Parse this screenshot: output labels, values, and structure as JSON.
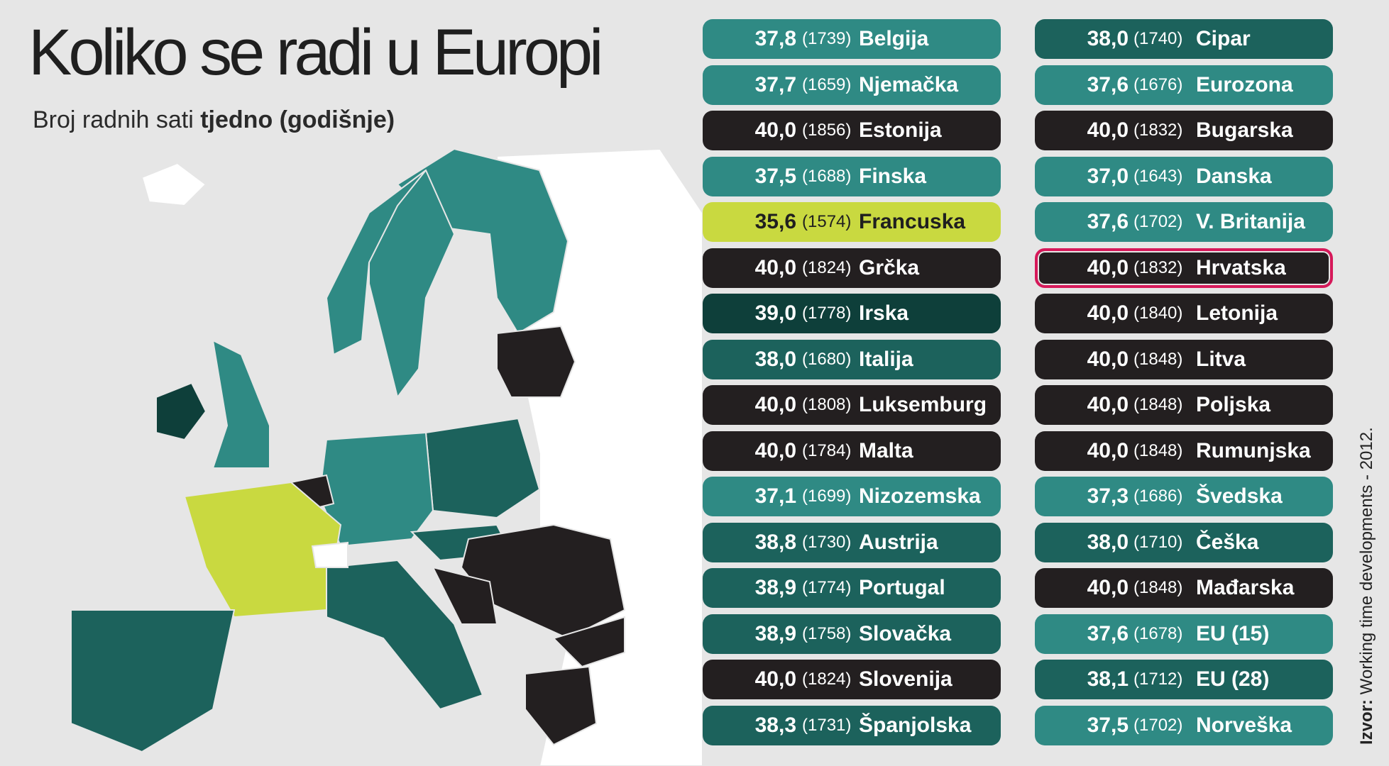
{
  "header": {
    "title": "Koliko se radi u Europi",
    "subtitle": "Broj radnih sati ",
    "subtitle_bold": "tjedno (godišnje)"
  },
  "source": {
    "label": "Izvor:",
    "text": "Working time developments - 2012."
  },
  "columns": [
    [
      {
        "weekly": "37,8",
        "annual": "(1739)",
        "country": "Belgija",
        "color": "#2f8a84"
      },
      {
        "weekly": "37,7",
        "annual": "(1659)",
        "country": "Njemačka",
        "color": "#2f8a84"
      },
      {
        "weekly": "40,0",
        "annual": "(1856)",
        "country": "Estonija",
        "color": "#231f20"
      },
      {
        "weekly": "37,5",
        "annual": "(1688)",
        "country": "Finska",
        "color": "#2f8a84"
      },
      {
        "weekly": "35,6",
        "annual": "(1574)",
        "country": "Francuska",
        "color": "#c9d940"
      },
      {
        "weekly": "40,0",
        "annual": "(1824)",
        "country": "Grčka",
        "color": "#231f20"
      },
      {
        "weekly": "39,0",
        "annual": "(1778)",
        "country": "Irska",
        "color": "#0e3f3a"
      },
      {
        "weekly": "38,0",
        "annual": "(1680)",
        "country": "Italija",
        "color": "#1c625c"
      },
      {
        "weekly": "40,0",
        "annual": "(1808)",
        "country": "Luksemburg",
        "color": "#231f20"
      },
      {
        "weekly": "40,0",
        "annual": "(1784)",
        "country": "Malta",
        "color": "#231f20"
      },
      {
        "weekly": "37,1",
        "annual": "(1699)",
        "country": "Nizozemska",
        "color": "#2f8a84"
      },
      {
        "weekly": "38,8",
        "annual": "(1730)",
        "country": "Austrija",
        "color": "#1c625c"
      },
      {
        "weekly": "38,9",
        "annual": "(1774)",
        "country": "Portugal",
        "color": "#1c625c"
      },
      {
        "weekly": "38,9",
        "annual": "(1758)",
        "country": "Slovačka",
        "color": "#1c625c"
      },
      {
        "weekly": "40,0",
        "annual": "(1824)",
        "country": "Slovenija",
        "color": "#231f20"
      },
      {
        "weekly": "38,3",
        "annual": "(1731)",
        "country": "Španjolska",
        "color": "#1c625c"
      }
    ],
    [
      {
        "weekly": "38,0",
        "annual": "(1740)",
        "country": "Cipar",
        "color": "#1c625c"
      },
      {
        "weekly": "37,6",
        "annual": "(1676)",
        "country": "Eurozona",
        "color": "#2f8a84"
      },
      {
        "weekly": "40,0",
        "annual": "(1832)",
        "country": "Bugarska",
        "color": "#231f20"
      },
      {
        "weekly": "37,0",
        "annual": "(1643)",
        "country": "Danska",
        "color": "#2f8a84"
      },
      {
        "weekly": "37,6",
        "annual": "(1702)",
        "country": "V. Britanija",
        "color": "#2f8a84"
      },
      {
        "weekly": "40,0",
        "annual": "(1832)",
        "country": "Hrvatska",
        "color": "#231f20",
        "highlight": true
      },
      {
        "weekly": "40,0",
        "annual": "(1840)",
        "country": "Letonija",
        "color": "#231f20"
      },
      {
        "weekly": "40,0",
        "annual": "(1848)",
        "country": "Litva",
        "color": "#231f20"
      },
      {
        "weekly": "40,0",
        "annual": "(1848)",
        "country": "Poljska",
        "color": "#231f20"
      },
      {
        "weekly": "40,0",
        "annual": "(1848)",
        "country": "Rumunjska",
        "color": "#231f20"
      },
      {
        "weekly": "37,3",
        "annual": "(1686)",
        "country": "Švedska",
        "color": "#2f8a84"
      },
      {
        "weekly": "38,0",
        "annual": "(1710)",
        "country": "Češka",
        "color": "#1c625c"
      },
      {
        "weekly": "40,0",
        "annual": "(1848)",
        "country": "Mađarska",
        "color": "#231f20"
      },
      {
        "weekly": "37,6",
        "annual": "(1678)",
        "country": "EU (15)",
        "color": "#2f8a84"
      },
      {
        "weekly": "38,1",
        "annual": "(1712)",
        "country": "EU (28)",
        "color": "#1c625c"
      },
      {
        "weekly": "37,5",
        "annual": "(1702)",
        "country": "Norveška",
        "color": "#2f8a84"
      }
    ]
  ]
}
